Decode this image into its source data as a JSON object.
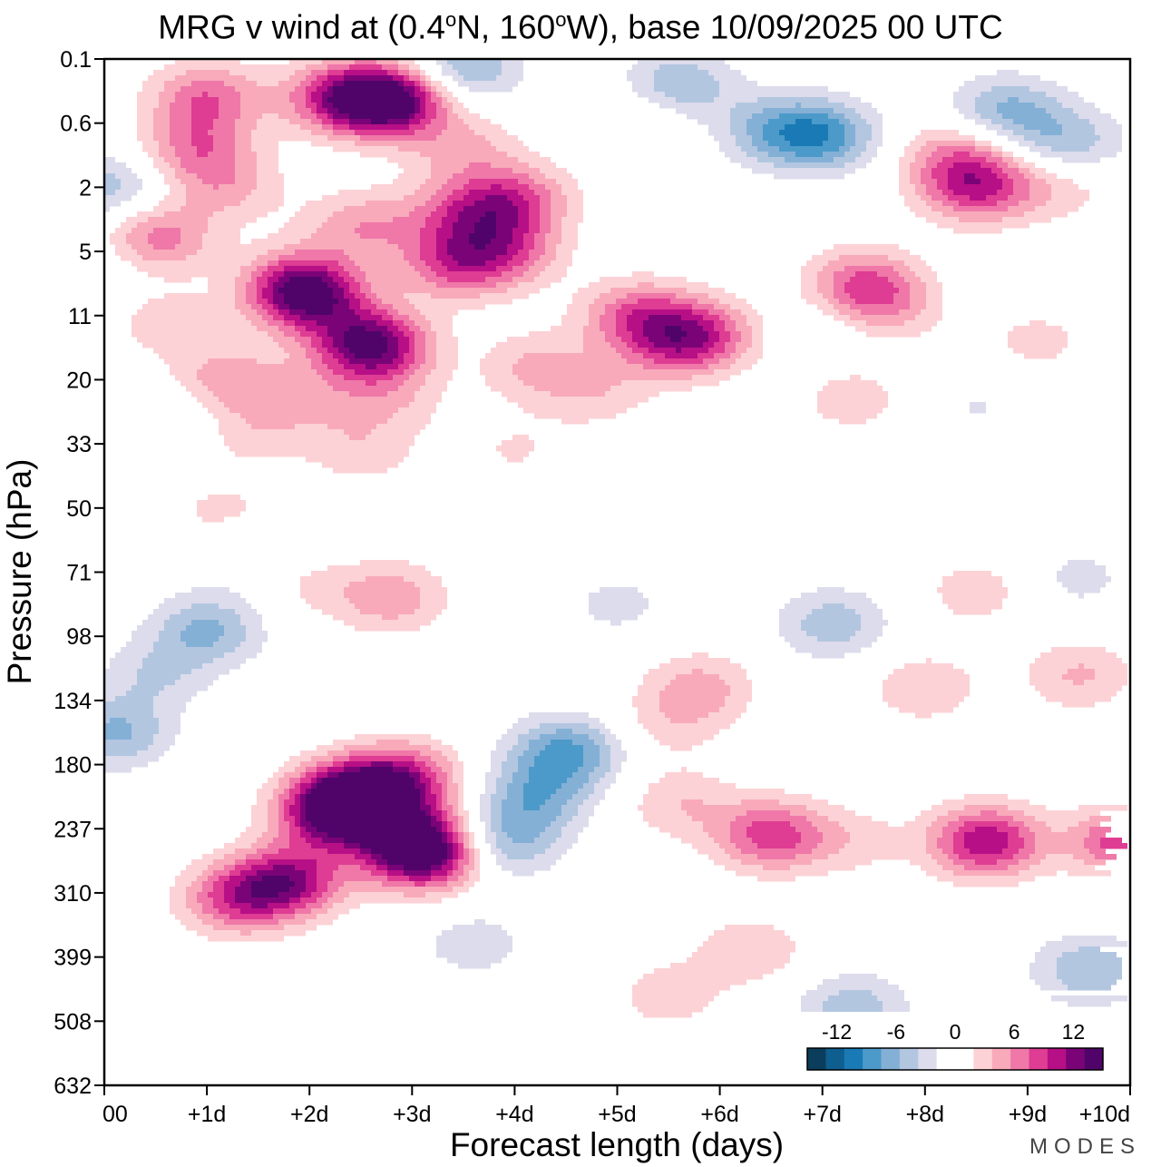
{
  "chart_data": {
    "type": "heatmap",
    "title_parts": {
      "prefix": "MRG v wind at (0.4",
      "deg1": "o",
      "mid1": "N, 160",
      "deg2": "o",
      "suffix": "W),  base 10/09/2025  00 UTC"
    },
    "xlabel": "Forecast length (days)",
    "ylabel": "Pressure (hPa)",
    "x_ticks": [
      "00",
      "+1d",
      "+2d",
      "+3d",
      "+4d",
      "+5d",
      "+6d",
      "+7d",
      "+8d",
      "+9d",
      "+10d"
    ],
    "xlim": [
      0,
      10
    ],
    "y_ticks": [
      "0.1",
      "0.6",
      "2",
      "5",
      "11",
      "20",
      "33",
      "50",
      "71",
      "98",
      "134",
      "180",
      "237",
      "310",
      "399",
      "508",
      "632"
    ],
    "colorbar": {
      "tick_labels": [
        "-12",
        "-6",
        "0",
        "6",
        "12"
      ],
      "tick_values": [
        -12,
        -6,
        0,
        6,
        12
      ],
      "range": [
        -15,
        15
      ],
      "colors": [
        "#0b3d5c",
        "#0e5e8f",
        "#1a7ab5",
        "#4c9ac9",
        "#84b0d6",
        "#b3c6e0",
        "#dcdcec",
        "#ffffff",
        "#ffffff",
        "#fcd2d6",
        "#f8aabb",
        "#ef78a8",
        "#df3c93",
        "#b70f86",
        "#7a0477",
        "#50046a"
      ]
    },
    "features": [
      {
        "x": 3.1,
        "y": 12.4,
        "v": 14.5
      },
      {
        "x": 2.4,
        "y": 11.5,
        "v": 12.5
      },
      {
        "x": 1.8,
        "y": 12.8,
        "v": 10.5
      },
      {
        "x": 1.3,
        "y": 13.1,
        "v": 8
      },
      {
        "x": 2.9,
        "y": 11.2,
        "v": 9
      },
      {
        "x": 2.25,
        "y": 11.8,
        "v": 10
      },
      {
        "x": 4.5,
        "y": 10.8,
        "v": -8
      },
      {
        "x": 3.9,
        "y": 12.2,
        "v": -6
      },
      {
        "x": 4.2,
        "y": 11.5,
        "v": -6
      },
      {
        "x": 0.1,
        "y": 10.5,
        "v": -6
      },
      {
        "x": 0.5,
        "y": 9.6,
        "v": -3.5
      },
      {
        "x": 6.5,
        "y": 12.1,
        "v": 8.5
      },
      {
        "x": 8.6,
        "y": 12.2,
        "v": 11
      },
      {
        "x": 10.0,
        "y": 12.2,
        "v": 9.5
      },
      {
        "x": 7.3,
        "y": 12.2,
        "v": 2.5
      },
      {
        "x": 5.6,
        "y": 11.6,
        "v": 3.5
      },
      {
        "x": 5.8,
        "y": 9.8,
        "v": 4.5
      },
      {
        "x": 5.5,
        "y": 10.4,
        "v": 2.5
      },
      {
        "x": 8.0,
        "y": 9.8,
        "v": 3.5
      },
      {
        "x": 9.5,
        "y": 9.6,
        "v": 4
      },
      {
        "x": 9.6,
        "y": 14.2,
        "v": -5.5
      },
      {
        "x": 7.3,
        "y": 14.8,
        "v": -5
      },
      {
        "x": 5.5,
        "y": 14.6,
        "v": 3
      },
      {
        "x": 6.3,
        "y": 13.9,
        "v": 3.5
      },
      {
        "x": 3.6,
        "y": 13.8,
        "v": -3
      },
      {
        "x": 1.2,
        "y": 7.7,
        "v": -3
      },
      {
        "x": 7.1,
        "y": 8.8,
        "v": -5
      },
      {
        "x": 1.0,
        "y": 8.9,
        "v": -6
      },
      {
        "x": 2.8,
        "y": 8.4,
        "v": 5
      },
      {
        "x": 5.0,
        "y": 8.5,
        "v": -2.5
      },
      {
        "x": 8.5,
        "y": 8.3,
        "v": 3
      },
      {
        "x": 2.0,
        "y": 8.2,
        "v": 2
      },
      {
        "x": 2.8,
        "y": 0.65,
        "v": 14.5
      },
      {
        "x": 2.3,
        "y": 0.6,
        "v": 9
      },
      {
        "x": 1.0,
        "y": 0.6,
        "v": 7
      },
      {
        "x": 0.9,
        "y": 1.4,
        "v": 6
      },
      {
        "x": 0.5,
        "y": 2.8,
        "v": 7
      },
      {
        "x": 1.9,
        "y": 3.5,
        "v": 7.5
      },
      {
        "x": 3.4,
        "y": 3.2,
        "v": 7
      },
      {
        "x": 4.0,
        "y": 2.2,
        "v": 7
      },
      {
        "x": 3.9,
        "y": 3.0,
        "v": 6.5
      },
      {
        "x": 2.5,
        "y": 2.6,
        "v": 5
      },
      {
        "x": 3.6,
        "y": 2.4,
        "v": 5
      },
      {
        "x": 3.3,
        "y": 2.5,
        "v": 2
      },
      {
        "x": 3.5,
        "y": 1.4,
        "v": 4
      },
      {
        "x": 1.2,
        "y": 2.0,
        "v": 4
      },
      {
        "x": 5.2,
        "y": 1.0,
        "v": 2.5
      },
      {
        "x": 5.6,
        "y": 0.4,
        "v": -5.5
      },
      {
        "x": 7.0,
        "y": 1.2,
        "v": -8
      },
      {
        "x": 6.5,
        "y": 1.1,
        "v": -5
      },
      {
        "x": 8.8,
        "y": 0.8,
        "v": -6
      },
      {
        "x": 9.4,
        "y": 1.3,
        "v": -5
      },
      {
        "x": 3.5,
        "y": 0.15,
        "v": -6
      },
      {
        "x": 8.5,
        "y": 2.0,
        "v": 9
      },
      {
        "x": 8.3,
        "y": 1.5,
        "v": 5
      },
      {
        "x": 9.3,
        "y": 2.0,
        "v": 3
      },
      {
        "x": 7.4,
        "y": 3.5,
        "v": 7
      },
      {
        "x": 7.6,
        "y": 3.9,
        "v": 4
      },
      {
        "x": 0.05,
        "y": 2.0,
        "v": -5
      },
      {
        "x": 0.05,
        "y": 3.2,
        "v": -2
      },
      {
        "x": 2.0,
        "y": 3.75,
        "v": 9
      },
      {
        "x": 2.6,
        "y": 4.4,
        "v": 5
      },
      {
        "x": 2.6,
        "y": 4.5,
        "v": 9
      },
      {
        "x": 0.6,
        "y": 4.1,
        "v": 3
      },
      {
        "x": 5.2,
        "y": 4.0,
        "v": 7
      },
      {
        "x": 5.8,
        "y": 4.3,
        "v": 8
      },
      {
        "x": 5.5,
        "y": 4.5,
        "v": 4
      },
      {
        "x": 4.2,
        "y": 4.8,
        "v": 4
      },
      {
        "x": 4.8,
        "y": 5.2,
        "v": 3
      },
      {
        "x": 1.2,
        "y": 5.0,
        "v": 5
      },
      {
        "x": 2.0,
        "y": 5.3,
        "v": 3
      },
      {
        "x": 2.8,
        "y": 5.3,
        "v": 3
      },
      {
        "x": 1.4,
        "y": 5.8,
        "v": 3
      },
      {
        "x": 2.5,
        "y": 6.1,
        "v": 3
      },
      {
        "x": 4.0,
        "y": 6.1,
        "v": 2
      },
      {
        "x": 7.3,
        "y": 5.3,
        "v": 3
      },
      {
        "x": 0.8,
        "y": 5.6,
        "v": -2
      },
      {
        "x": 8.5,
        "y": 5.4,
        "v": -2
      },
      {
        "x": 9.1,
        "y": 4.4,
        "v": 2.5
      },
      {
        "x": 7.1,
        "y": 4.2,
        "v": -2
      },
      {
        "x": 2.7,
        "y": 7.2,
        "v": 2
      },
      {
        "x": 1.0,
        "y": 7.5,
        "v": 2
      },
      {
        "x": 1.2,
        "y": 7.0,
        "v": 2
      },
      {
        "x": 2.5,
        "y": 7.2,
        "v": -2
      },
      {
        "x": 9.5,
        "y": 8.1,
        "v": -2.5
      },
      {
        "x": 3.0,
        "y": 12.0,
        "v": 6
      }
    ]
  },
  "logo": "MODES"
}
